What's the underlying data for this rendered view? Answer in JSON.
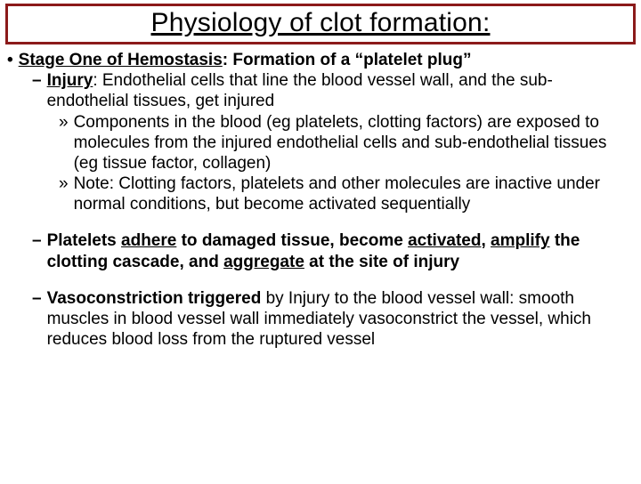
{
  "title": {
    "text": "Physiology of clot formation:",
    "border_color": "#8b1a1a",
    "fontsize": 30
  },
  "body_fontsize": 19,
  "text_color": "#000000",
  "stage_prefix": "Stage One of Hemostasis",
  "stage_suffix": ": Formation of a “platelet plug”",
  "injury_prefix": "Injury",
  "injury_suffix": ": Endothelial cells that line the blood vessel wall, and the sub-endothelial tissues, get injured",
  "sub1": "Components in the blood (eg platelets, clotting factors) are exposed to molecules from the injured endothelial cells and sub-endothelial tissues (eg tissue factor, collagen)",
  "sub2": "Note: Clotting factors, platelets and other molecules are inactive under normal conditions, but become activated sequentially",
  "platelets": {
    "p1": "Platelets ",
    "w1": "adhere",
    "p2": " to damaged tissue, become ",
    "w2": "activated",
    "p3": ", ",
    "w3": "amplify",
    "p4": " the clotting cascade, and ",
    "w4": "aggregate",
    "p5": " at the site of injury"
  },
  "vaso_prefix": "Vasoconstriction triggered",
  "vaso_suffix": " by Injury to the blood vessel wall: smooth muscles in blood vessel wall immediately vasoconstrict the vessel, which reduces blood loss from the ruptured vessel",
  "bullets": {
    "dot": "•",
    "dash": "–",
    "raquo": "»"
  }
}
